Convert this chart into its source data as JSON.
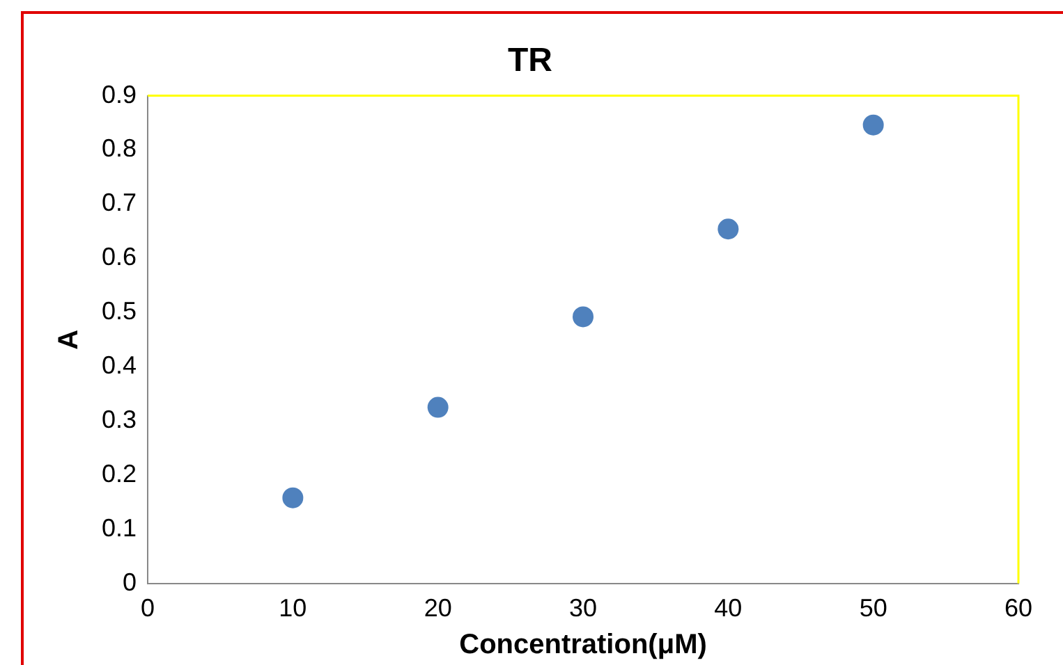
{
  "chart_data": {
    "type": "scatter",
    "title": "TR",
    "xlabel": "Concentration(μM)",
    "ylabel": "A",
    "x": [
      10,
      20,
      30,
      40,
      50
    ],
    "series": [
      {
        "color": "#4f81bd",
        "values": [
          0.158,
          0.325,
          0.492,
          0.654,
          0.846
        ]
      }
    ],
    "xlim": [
      0,
      60
    ],
    "xticks": [
      0,
      10,
      20,
      30,
      40,
      50,
      60
    ],
    "ylim": [
      0,
      0.9
    ],
    "yticks": [
      0,
      0.1,
      0.2,
      0.3,
      0.4,
      0.5,
      0.6,
      0.7,
      0.8,
      0.9
    ],
    "grid": false,
    "legend": false,
    "marker": "circle"
  }
}
